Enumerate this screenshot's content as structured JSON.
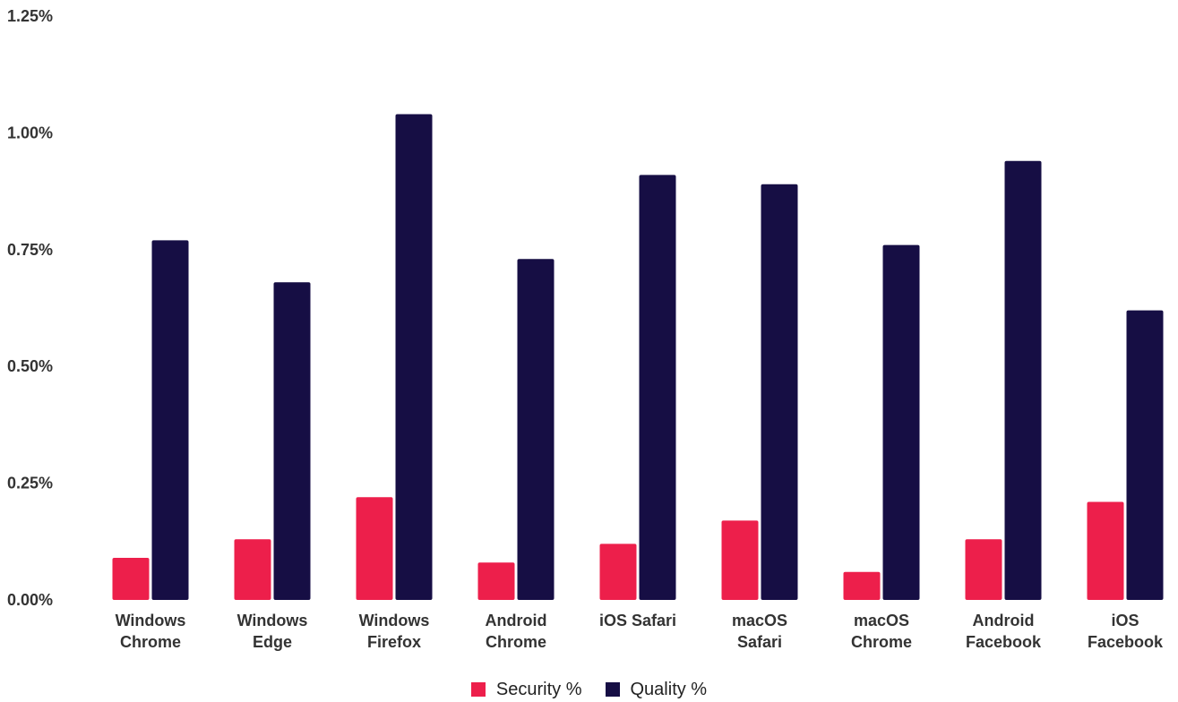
{
  "chart_data": {
    "type": "bar",
    "categories": [
      [
        "Windows",
        "Chrome"
      ],
      [
        "Windows",
        "Edge"
      ],
      [
        "Windows",
        "Firefox"
      ],
      [
        "Android",
        "Chrome"
      ],
      [
        "iOS Safari"
      ],
      [
        "macOS",
        "Safari"
      ],
      [
        "macOS",
        "Chrome"
      ],
      [
        "Android",
        "Facebook"
      ],
      [
        "iOS",
        "Facebook"
      ]
    ],
    "series": [
      {
        "name": "Security %",
        "color": "#ED1F4B",
        "values": [
          0.09,
          0.13,
          0.22,
          0.08,
          0.12,
          0.17,
          0.06,
          0.13,
          0.21
        ]
      },
      {
        "name": "Quality %",
        "color": "#160E44",
        "values": [
          0.77,
          0.68,
          1.04,
          0.73,
          0.91,
          0.89,
          0.76,
          0.94,
          0.62
        ]
      }
    ],
    "y_ticks": [
      "0.00%",
      "0.25%",
      "0.50%",
      "0.75%",
      "1.00%",
      "1.25%"
    ],
    "y_tick_values": [
      0,
      0.25,
      0.5,
      0.75,
      1.0,
      1.25
    ],
    "ylim": [
      0,
      1.25
    ],
    "title": "",
    "xlabel": "",
    "ylabel": "",
    "grid": false,
    "legend_position": "bottom-center"
  }
}
